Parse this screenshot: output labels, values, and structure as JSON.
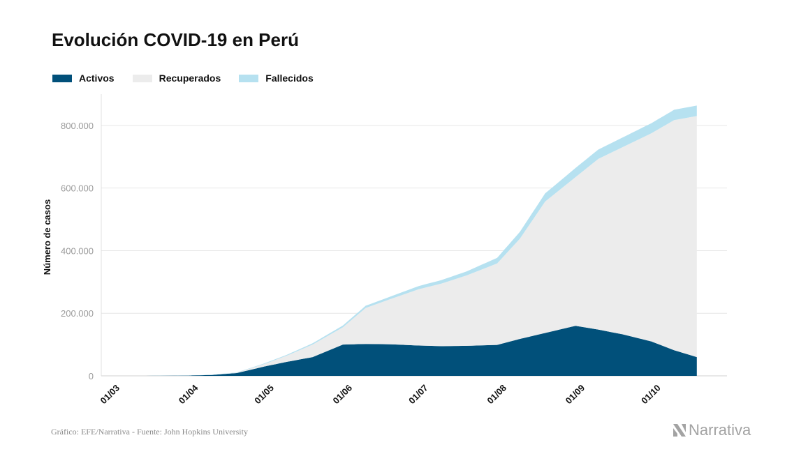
{
  "chart_data": {
    "type": "area",
    "stacked": true,
    "title": "Evolución COVID-19 en Perú",
    "xlabel": "",
    "ylabel": "Número de casos",
    "ylim": [
      0,
      900000
    ],
    "yticks": [
      0,
      200000,
      400000,
      600000,
      800000
    ],
    "ytick_labels": [
      "0",
      "200.000",
      "400.000",
      "600.000",
      "800.000"
    ],
    "xtick_labels": [
      "01/03",
      "01/04",
      "01/05",
      "01/06",
      "01/07",
      "01/08",
      "01/09",
      "01/10"
    ],
    "x_start": "2020-03-01",
    "x_end": "2020-10-19",
    "grid": "horizontal",
    "legend_position": "top-left",
    "x": [
      "2020-03-01",
      "2020-03-15",
      "2020-04-01",
      "2020-04-10",
      "2020-04-20",
      "2020-05-01",
      "2020-05-10",
      "2020-05-20",
      "2020-06-01",
      "2020-06-10",
      "2020-06-20",
      "2020-07-01",
      "2020-07-10",
      "2020-07-20",
      "2020-08-01",
      "2020-08-10",
      "2020-08-20",
      "2020-09-01",
      "2020-09-10",
      "2020-09-20",
      "2020-10-01",
      "2020-10-10",
      "2020-10-19"
    ],
    "series": [
      {
        "name": "Activos",
        "color": "#01507a",
        "values": [
          0,
          0,
          1000,
          3000,
          9000,
          30000,
          45000,
          60000,
          100000,
          102000,
          101000,
          97000,
          95000,
          96000,
          99000,
          118000,
          137000,
          160000,
          148000,
          132000,
          110000,
          82000,
          60000
        ]
      },
      {
        "name": "Recuperados",
        "color": "#ececec",
        "values": [
          0,
          0,
          0,
          0,
          1000,
          8000,
          20000,
          40000,
          55000,
          115000,
          145000,
          180000,
          200000,
          225000,
          260000,
          320000,
          420000,
          475000,
          545000,
          600000,
          665000,
          735000,
          770000
        ]
      },
      {
        "name": "Fallecidos",
        "color": "#b6e1f0",
        "values": [
          0,
          0,
          50,
          300,
          1000,
          2000,
          3000,
          4000,
          6000,
          7000,
          8000,
          10000,
          11000,
          13000,
          18000,
          22000,
          26000,
          29000,
          30000,
          31000,
          32000,
          33000,
          33500
        ]
      }
    ]
  },
  "footer": {
    "source": "Gráfico: EFE/Narrativa - Fuente: John Hopkins University",
    "logo_text": "Narrativa"
  },
  "colors": {
    "axis_text": "#9a9a9a",
    "grid": "#e6e6e6"
  }
}
